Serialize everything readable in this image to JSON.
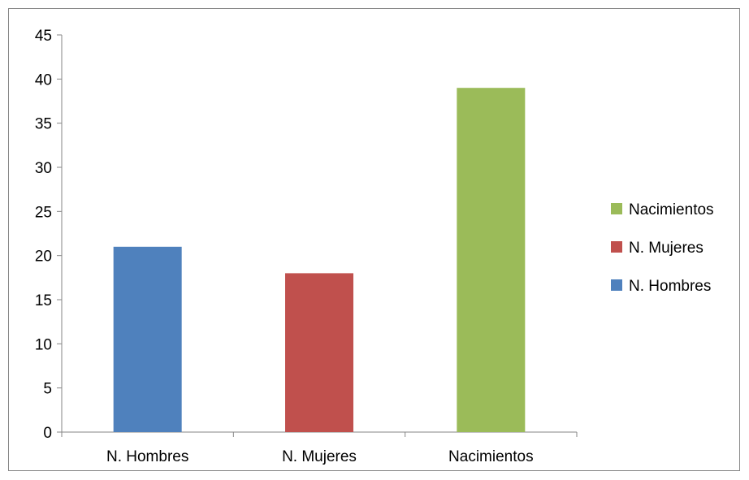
{
  "chart_data": {
    "type": "bar",
    "categories": [
      "N. Hombres",
      "N. Mujeres",
      "Nacimientos"
    ],
    "values": [
      21,
      18,
      39
    ],
    "colors": [
      "#4f81bd",
      "#c0504d",
      "#9bbb59"
    ],
    "ylim": [
      0,
      45
    ],
    "yticks": [
      0,
      5,
      10,
      15,
      20,
      25,
      30,
      35,
      40,
      45
    ],
    "grid": false,
    "legend_position": "right",
    "legend": [
      {
        "label": "Nacimientos",
        "color": "#9bbb59"
      },
      {
        "label": "N. Mujeres",
        "color": "#c0504d"
      },
      {
        "label": "N. Hombres",
        "color": "#4f81bd"
      }
    ]
  }
}
